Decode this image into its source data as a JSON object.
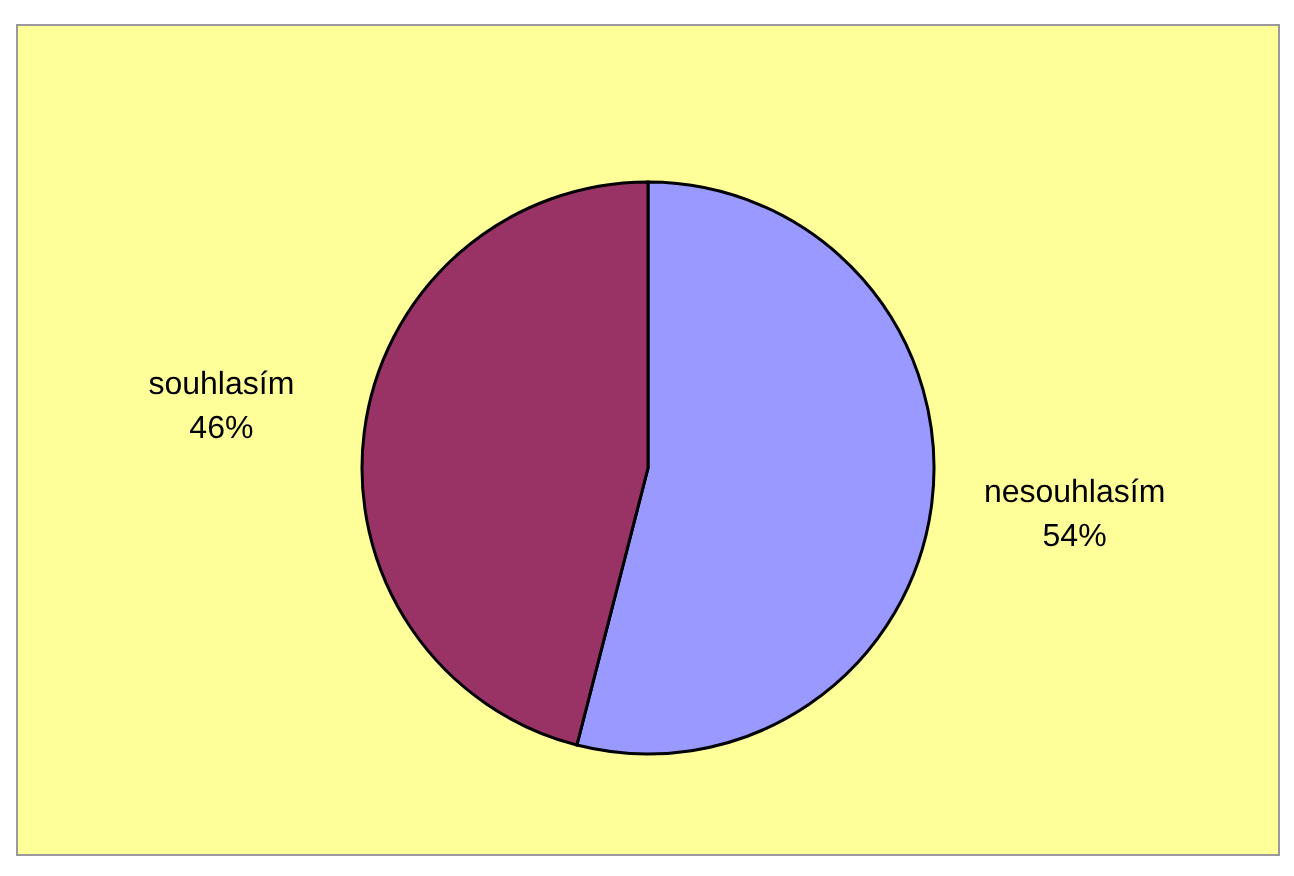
{
  "chart_data": {
    "type": "pie",
    "categories": [
      "nesouhlasím",
      "souhlasím"
    ],
    "values": [
      54,
      46
    ],
    "colors": [
      "#9999ff",
      "#993366"
    ],
    "value_labels": [
      "54%",
      "46%"
    ]
  }
}
